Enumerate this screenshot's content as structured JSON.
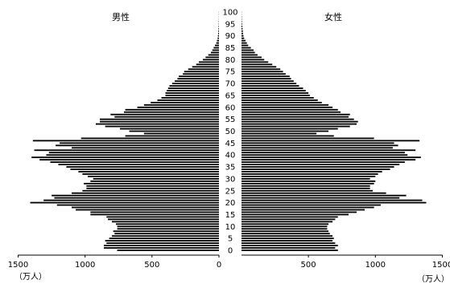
{
  "chart_data": {
    "type": "bar",
    "orientation": "horizontal",
    "subtype": "population-pyramid",
    "left_title": "男性",
    "right_title": "女性",
    "unit_label": "（万人）",
    "age_labels": [
      "0",
      "5",
      "10",
      "15",
      "20",
      "25",
      "30",
      "35",
      "40",
      "45",
      "50",
      "55",
      "60",
      "65",
      "70",
      "75",
      "80",
      "85",
      "90",
      "95",
      "100"
    ],
    "x_ticks": [
      1500,
      1000,
      500,
      0,
      500,
      1000,
      1500
    ],
    "xlim": [
      0,
      1500
    ],
    "age_range": [
      0,
      100
    ],
    "series": [
      {
        "name": "男性",
        "side": "left",
        "values": [
          760,
          860,
          860,
          840,
          850,
          820,
          800,
          780,
          790,
          760,
          760,
          770,
          800,
          830,
          840,
          960,
          960,
          1070,
          1100,
          1210,
          1410,
          1310,
          1230,
          1250,
          1100,
          1020,
          990,
          990,
          1010,
          960,
          940,
          980,
          1020,
          1050,
          1110,
          1140,
          1200,
          1260,
          1340,
          1400,
          1290,
          1270,
          1380,
          1100,
          1220,
          1190,
          1390,
          1030,
          700,
          560,
          670,
          740,
          850,
          920,
          890,
          890,
          780,
          810,
          710,
          700,
          610,
          560,
          510,
          460,
          430,
          400,
          400,
          390,
          380,
          370,
          350,
          330,
          310,
          300,
          270,
          260,
          230,
          200,
          170,
          150,
          120,
          100,
          80,
          60,
          50,
          40,
          30,
          20,
          15,
          10,
          8,
          6,
          5,
          4,
          3,
          2,
          2,
          1,
          1,
          1,
          1
        ]
      },
      {
        "name": "女性",
        "side": "right",
        "values": [
          720,
          700,
          720,
          700,
          680,
          690,
          680,
          660,
          650,
          640,
          640,
          650,
          680,
          700,
          720,
          800,
          860,
          920,
          990,
          1040,
          1380,
          1350,
          1180,
          1230,
          1080,
          980,
          960,
          960,
          990,
          1000,
          960,
          1000,
          1020,
          1050,
          1110,
          1140,
          1180,
          1220,
          1300,
          1340,
          1240,
          1220,
          1300,
          1130,
          1170,
          1140,
          1330,
          990,
          690,
          560,
          650,
          720,
          810,
          860,
          870,
          840,
          800,
          810,
          740,
          720,
          680,
          650,
          600,
          570,
          540,
          510,
          500,
          480,
          460,
          430,
          410,
          390,
          370,
          360,
          330,
          310,
          290,
          260,
          230,
          200,
          170,
          150,
          120,
          100,
          90,
          70,
          50,
          40,
          30,
          20,
          15,
          12,
          10,
          8,
          6,
          4,
          3,
          2,
          2,
          1,
          1
        ]
      }
    ],
    "grid": false,
    "legend": "none"
  }
}
